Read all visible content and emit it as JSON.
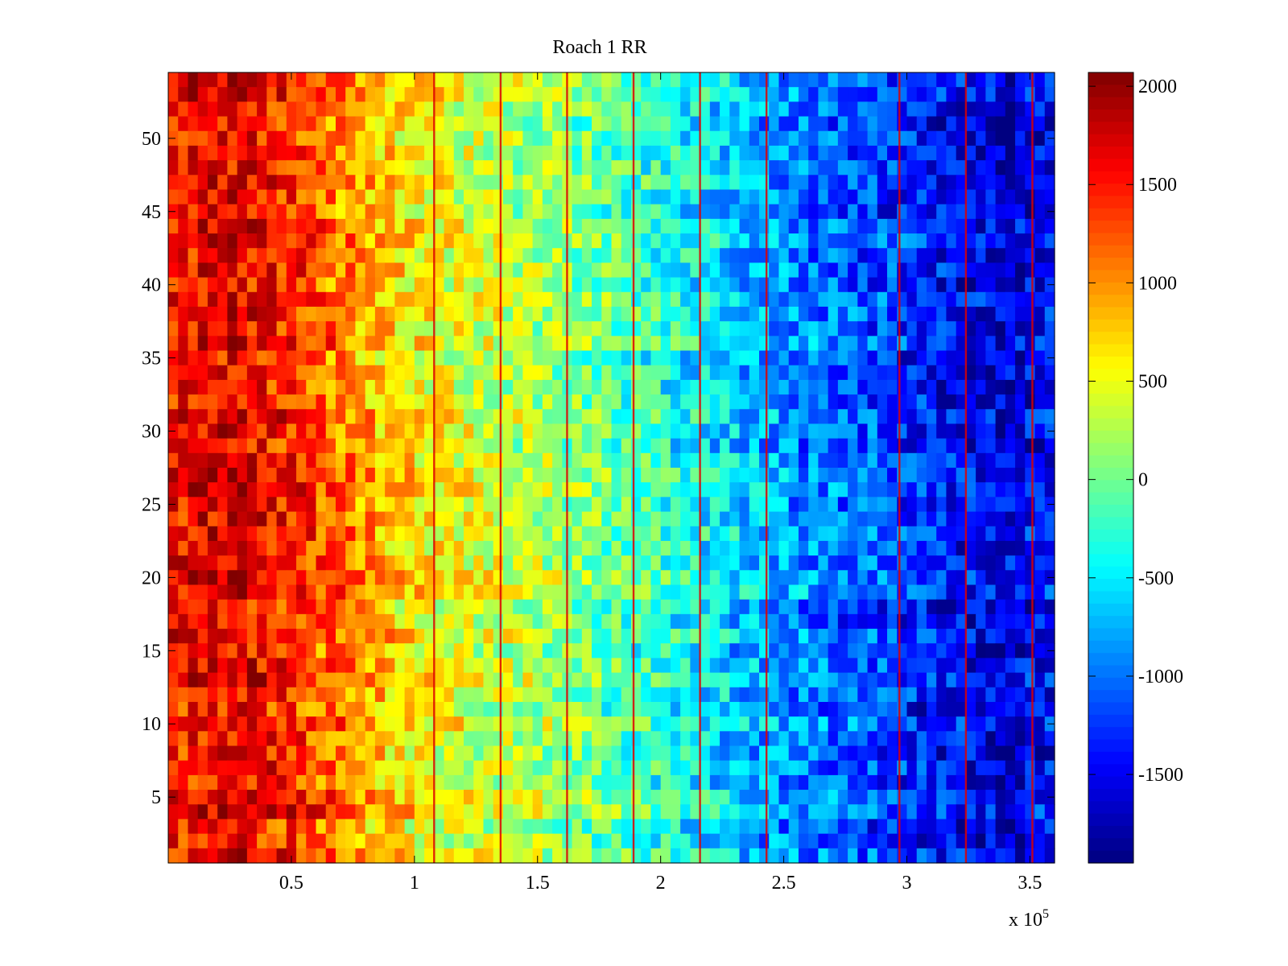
{
  "chart_data": {
    "type": "heatmap",
    "title": "Roach 1 RR",
    "xlabel": "",
    "ylabel": "",
    "x_scale_label": "x 10",
    "x_scale_exponent": "5",
    "xlim": [
      0,
      3.6
    ],
    "ylim": [
      0.5,
      54.5
    ],
    "x_ticks": [
      0.5,
      1,
      1.5,
      2,
      2.5,
      3,
      3.5
    ],
    "x_tick_labels": [
      "0.5",
      "1",
      "1.5",
      "2",
      "2.5",
      "3",
      "3.5"
    ],
    "y_ticks": [
      5,
      10,
      15,
      20,
      25,
      30,
      35,
      40,
      45,
      50
    ],
    "y_tick_labels": [
      "5",
      "10",
      "15",
      "20",
      "25",
      "30",
      "35",
      "40",
      "45",
      "50"
    ],
    "rows": 54,
    "columns": 90,
    "column_x_range": [
      0,
      3.6
    ],
    "value_trend_by_x": [
      {
        "x": 0.0,
        "value": 1500
      },
      {
        "x": 0.25,
        "value": 1700
      },
      {
        "x": 0.5,
        "value": 1450
      },
      {
        "x": 1.0,
        "value": 600
      },
      {
        "x": 1.5,
        "value": 250
      },
      {
        "x": 2.0,
        "value": -250
      },
      {
        "x": 2.5,
        "value": -850
      },
      {
        "x": 3.0,
        "value": -1250
      },
      {
        "x": 3.4,
        "value": -1600
      },
      {
        "x": 3.6,
        "value": -1350
      }
    ],
    "spike_lines_x": [
      1.08,
      1.35,
      1.62,
      1.89,
      2.16,
      2.43,
      2.97,
      3.24,
      3.51
    ],
    "spike_value": 1700,
    "colorbar": {
      "colormap": "jet",
      "clim": [
        -1950,
        2070
      ],
      "ticks": [
        2000,
        1500,
        1000,
        500,
        0,
        -500,
        -1000,
        -1500
      ],
      "tick_labels": [
        "2000",
        "1500",
        "1000",
        "500",
        "0",
        "-500",
        "-1000",
        "-1500"
      ]
    }
  }
}
